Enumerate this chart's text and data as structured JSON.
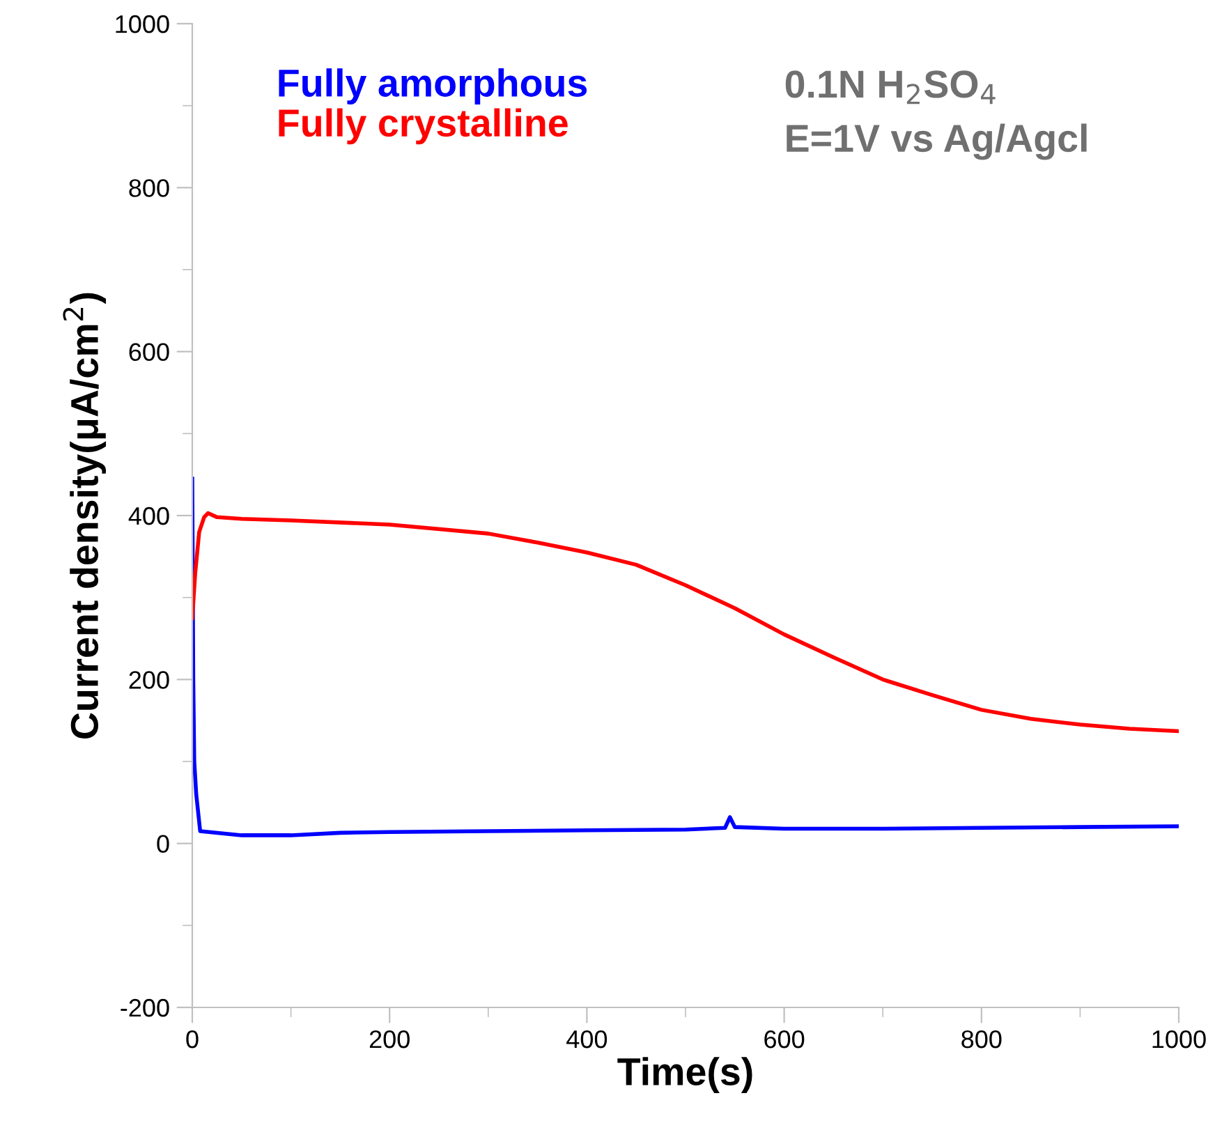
{
  "chart_data": {
    "type": "line",
    "xlabel": "Time(s)",
    "ylabel": "Current density(μA/cm$^{2}$)",
    "xlim": [
      0,
      1000
    ],
    "ylim": [
      -200,
      1000
    ],
    "xticks": [
      0,
      200,
      400,
      600,
      800,
      1000
    ],
    "yticks": [
      -200,
      0,
      200,
      400,
      600,
      800,
      1000
    ],
    "legend": "top left",
    "grid": false,
    "marker": "none",
    "line_style": "solid",
    "annotations": [
      "0.1N H$_{2}$SO$_{4}$",
      "E=1V vs Ag/Agcl"
    ],
    "series": [
      {
        "name": "Fully amorphous",
        "color": "#0000ff",
        "x": [
          0,
          1,
          2,
          4,
          8,
          50,
          100,
          150,
          200,
          300,
          400,
          500,
          540,
          545,
          550,
          600,
          700,
          800,
          900,
          1000
        ],
        "values": [
          445,
          200,
          100,
          60,
          15,
          10,
          10,
          13,
          14,
          15,
          16,
          17,
          19,
          32,
          20,
          18,
          18,
          19,
          20,
          21
        ]
      },
      {
        "name": "Fully crystalline",
        "color": "#ff0000",
        "x": [
          0,
          3,
          7,
          12,
          16,
          25,
          50,
          100,
          200,
          300,
          350,
          400,
          450,
          500,
          550,
          600,
          650,
          700,
          750,
          800,
          850,
          900,
          950,
          1000
        ],
        "values": [
          275,
          330,
          380,
          398,
          403,
          398,
          396,
          394,
          389,
          378,
          367,
          355,
          340,
          315,
          287,
          255,
          227,
          200,
          181,
          163,
          152,
          145,
          140,
          137
        ]
      }
    ]
  }
}
